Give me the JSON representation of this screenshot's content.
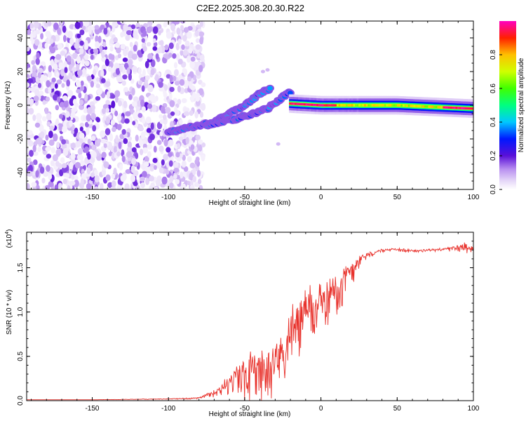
{
  "title": "C2E2.2025.308.20.30.R22",
  "chart_data": [
    {
      "type": "heatmap",
      "xlabel": "Height of straight line (km)",
      "ylabel": "Frequency (Hz)",
      "xlim": [
        -193,
        100
      ],
      "ylim": [
        -50,
        50
      ],
      "xticks": [
        -150,
        -100,
        -50,
        0,
        50,
        100
      ],
      "yticks": [
        -40,
        -20,
        0,
        20,
        40
      ],
      "colorbar": {
        "label": "Normalized spectral amplitude",
        "range": [
          0,
          1
        ],
        "ticks": [
          "0.0",
          "0.2",
          "0.4",
          "0.6",
          "0.8"
        ],
        "tick_values": [
          0.0,
          0.2,
          0.4,
          0.6,
          0.8
        ]
      },
      "regions": [
        {
          "name": "noise",
          "x_range": [
            -193,
            -82
          ],
          "frequency": "all",
          "amplitude_range": [
            0.02,
            0.2
          ]
        },
        {
          "name": "rising branch 1",
          "points": [
            [
              -100,
              -16
            ],
            [
              -70,
              -10
            ],
            [
              -50,
              0
            ],
            [
              -40,
              7
            ],
            [
              -33,
              10
            ]
          ],
          "amplitude_range": [
            0.2,
            0.5
          ]
        },
        {
          "name": "rising branch 2",
          "points": [
            [
              -75,
              -12
            ],
            [
              -55,
              -8
            ],
            [
              -35,
              -2
            ],
            [
              -25,
              5
            ],
            [
              -20,
              8
            ]
          ],
          "amplitude_range": [
            0.2,
            0.5
          ]
        },
        {
          "name": "stable echo",
          "points": [
            [
              -20,
              1
            ],
            [
              0,
              0
            ],
            [
              50,
              0
            ],
            [
              100,
              -2
            ]
          ],
          "amplitude_range": [
            0.6,
            1.0
          ]
        }
      ]
    },
    {
      "type": "line",
      "xlabel": "Height of straight line (km)",
      "ylabel": "SNR (10 * v/v)",
      "multiplier_label": "(x10",
      "multiplier_exp": "4",
      "xlim": [
        -193,
        100
      ],
      "ylim": [
        0,
        1.9
      ],
      "xticks": [
        -150,
        -100,
        -50,
        0,
        50,
        100
      ],
      "yticks": [
        "0.0",
        "0.5",
        "1.0",
        "1.5"
      ],
      "ytick_values": [
        0.0,
        0.5,
        1.0,
        1.5
      ],
      "color": "#e8322c",
      "series": [
        {
          "name": "SNR",
          "x": [
            -193,
            -150,
            -100,
            -80,
            -70,
            -60,
            -55,
            -50,
            -45,
            -40,
            -35,
            -30,
            -25,
            -20,
            -15,
            -10,
            -5,
            0,
            5,
            10,
            15,
            20,
            25,
            30,
            40,
            50,
            60,
            70,
            80,
            90,
            95,
            100
          ],
          "y": [
            0.01,
            0.01,
            0.02,
            0.03,
            0.1,
            0.22,
            0.3,
            0.35,
            0.4,
            0.38,
            0.42,
            0.48,
            0.6,
            0.8,
            0.95,
            1.05,
            1.1,
            1.1,
            1.25,
            1.35,
            1.38,
            1.52,
            1.6,
            1.65,
            1.7,
            1.71,
            1.69,
            1.7,
            1.71,
            1.73,
            1.75,
            1.72
          ],
          "noise": [
            0,
            0,
            0.005,
            0.01,
            0.05,
            0.12,
            0.18,
            0.28,
            0.3,
            0.3,
            0.32,
            0.35,
            0.4,
            0.42,
            0.4,
            0.35,
            0.3,
            0.32,
            0.3,
            0.3,
            0.3,
            0.2,
            0.08,
            0.04,
            0.02,
            0.02,
            0.02,
            0.02,
            0.02,
            0.04,
            0.08,
            0.03
          ]
        }
      ]
    }
  ]
}
